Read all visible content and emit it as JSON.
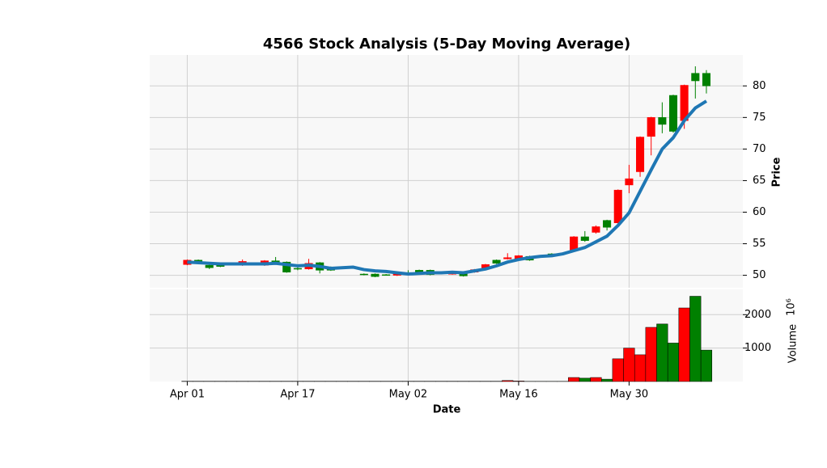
{
  "chart_data": {
    "type": "candlestick",
    "title": "4566 Stock Analysis (5-Day Moving Average)",
    "xlabel": "Date",
    "ylabel": "Price",
    "y2label": "Volume",
    "y2_offset_label": "10⁶",
    "categories": [
      "Apr 01",
      null,
      null,
      null,
      null,
      null,
      null,
      null,
      null,
      null,
      "Apr 17",
      null,
      null,
      null,
      null,
      null,
      null,
      null,
      null,
      null,
      "May 02",
      null,
      null,
      null,
      null,
      null,
      null,
      null,
      null,
      null,
      "May 16",
      null,
      null,
      null,
      null,
      null,
      null,
      null,
      null,
      null,
      "May 30",
      null,
      null,
      null,
      null,
      null,
      null,
      null
    ],
    "open": [
      52.4,
      52.0,
      51.2,
      51.4,
      51.8,
      52.2,
      51.8,
      52.3,
      52.1,
      50.5,
      51.0,
      51.9,
      50.8,
      50.8,
      51.2,
      51.3,
      50.1,
      49.8,
      50.1,
      50.3,
      50.3,
      50.2,
      50.1,
      50.4,
      50.3,
      49.9,
      50.9,
      51.7,
      51.9,
      52.8,
      53.1,
      52.4,
      53.0,
      53.0,
      53.5,
      56.1,
      55.5,
      57.7,
      57.6,
      63.5,
      65.3,
      71.9,
      75.0,
      73.9,
      72.8,
      80.1,
      80.8,
      80.0
    ],
    "high": [
      52.5,
      52.5,
      51.7,
      51.9,
      51.9,
      52.5,
      52.0,
      52.4,
      52.9,
      52.2,
      51.3,
      52.6,
      52.1,
      51.4,
      51.3,
      51.4,
      50.3,
      50.3,
      50.2,
      50.4,
      50.8,
      50.9,
      50.9,
      50.5,
      50.4,
      50.4,
      51.0,
      51.8,
      52.5,
      53.5,
      53.2,
      53.1,
      53.1,
      53.5,
      53.6,
      56.2,
      57.0,
      57.9,
      58.8,
      63.6,
      67.5,
      72.0,
      75.1,
      77.4,
      78.6,
      80.2,
      83.1,
      82.5
    ],
    "low": [
      51.6,
      51.9,
      51.0,
      51.3,
      51.7,
      51.5,
      51.7,
      51.5,
      52.0,
      50.4,
      50.8,
      50.9,
      50.3,
      50.7,
      51.1,
      51.2,
      50.0,
      49.7,
      50.0,
      49.9,
      50.2,
      50.1,
      50.0,
      50.3,
      50.1,
      49.8,
      50.4,
      51.1,
      51.8,
      52.5,
      52.5,
      52.3,
      52.9,
      52.9,
      53.4,
      53.8,
      55.3,
      56.6,
      57.1,
      58.1,
      63.0,
      65.6,
      69.0,
      72.5,
      72.6,
      73.2,
      78.0,
      78.8
    ],
    "close": [
      51.7,
      52.4,
      51.6,
      51.8,
      51.8,
      51.6,
      51.8,
      51.6,
      52.3,
      52.1,
      51.1,
      51.0,
      52.0,
      51.3,
      51.2,
      51.3,
      50.2,
      50.2,
      50.1,
      50.0,
      50.3,
      50.8,
      50.8,
      50.4,
      50.2,
      50.3,
      50.5,
      51.2,
      52.4,
      52.6,
      52.6,
      53.0,
      53.0,
      53.4,
      53.5,
      54.0,
      56.1,
      56.8,
      58.7,
      58.3,
      64.3,
      66.4,
      72.0,
      75.0,
      78.5,
      74.5,
      82.0,
      82.0
    ],
    "volume": [
      8,
      8,
      8,
      8,
      8,
      8,
      8,
      8,
      8,
      8,
      8,
      8,
      8,
      8,
      8,
      8,
      8,
      8,
      8,
      8,
      8,
      8,
      8,
      8,
      8,
      8,
      8,
      8,
      8,
      30,
      15,
      5,
      5,
      5,
      5,
      120,
      100,
      120,
      70,
      680,
      1000,
      800,
      1620,
      1720,
      1150,
      2200,
      2550,
      940
    ],
    "moving_average": {
      "color": "#1f77b4",
      "values": [
        52.1,
        52.0,
        51.9,
        51.8,
        51.8,
        51.8,
        51.8,
        51.8,
        51.9,
        51.7,
        51.5,
        51.6,
        51.4,
        51.1,
        51.2,
        51.3,
        50.9,
        50.7,
        50.6,
        50.4,
        50.2,
        50.3,
        50.4,
        50.4,
        50.5,
        50.4,
        50.7,
        51.0,
        51.5,
        52.1,
        52.5,
        52.8,
        53.0,
        53.1,
        53.4,
        53.9,
        54.4,
        55.3,
        56.2,
        57.9,
        59.9,
        63.3,
        66.7,
        70.0,
        71.8,
        74.5,
        76.5,
        77.6
      ]
    },
    "up_color": "#008000",
    "down_color": "#ff0000",
    "xlim": [
      -3.4,
      50.3
    ],
    "ylim": [
      47.9,
      84.9
    ],
    "yticks": [
      50,
      55,
      60,
      65,
      70,
      75,
      80
    ],
    "y2lim": [
      0,
      2780
    ],
    "y2ticks": [
      1000,
      2000
    ],
    "grid": true
  }
}
